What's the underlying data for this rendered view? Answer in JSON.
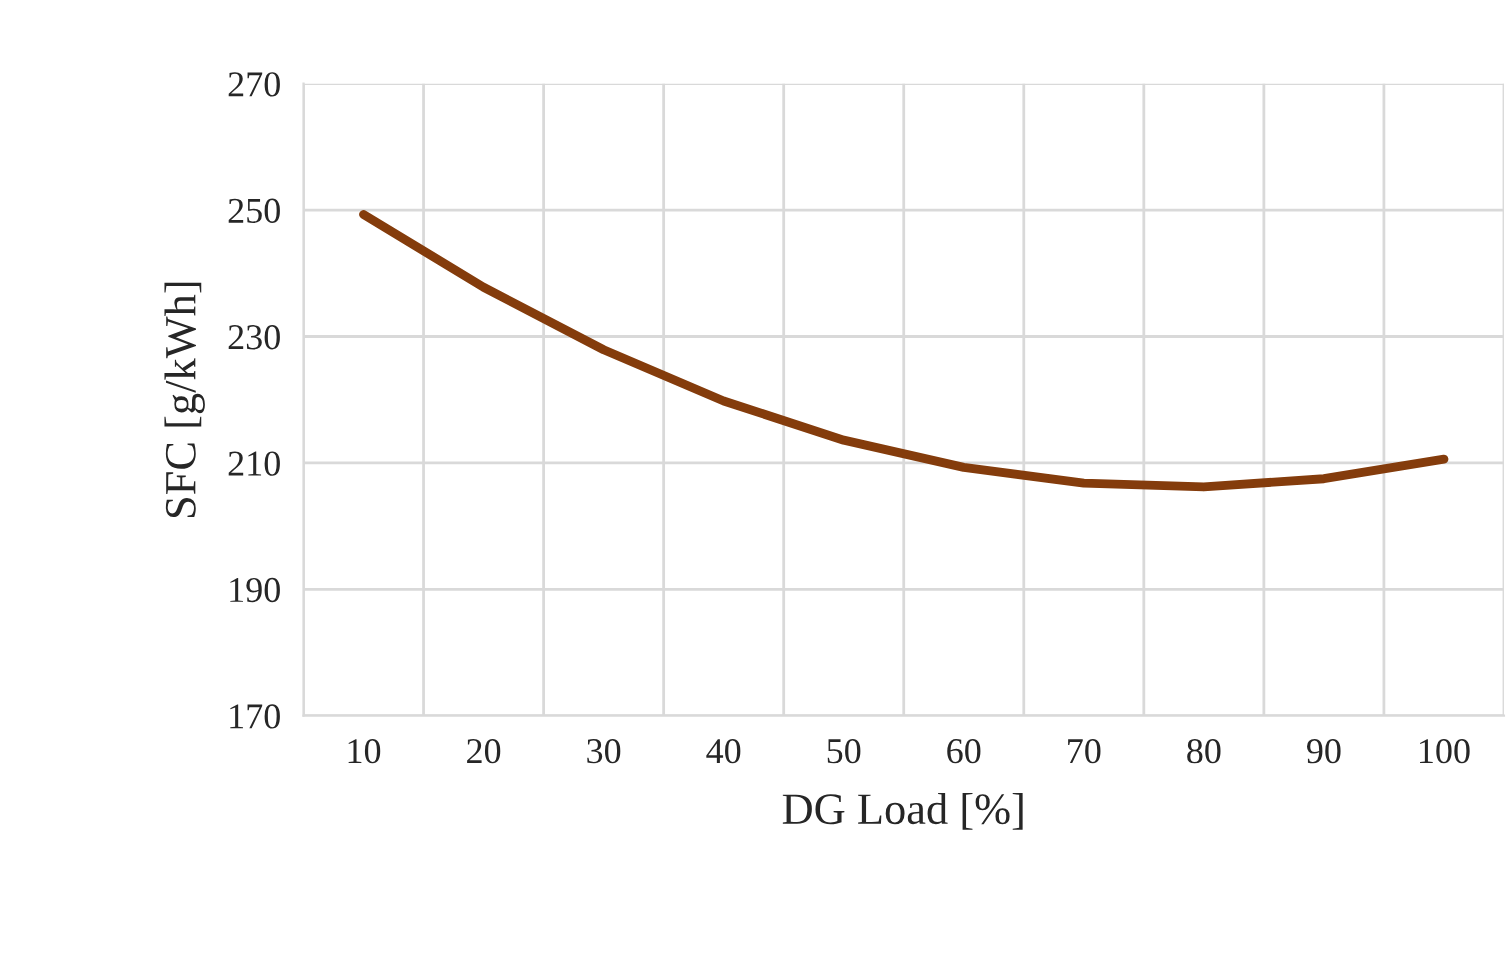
{
  "chart_data": {
    "type": "line",
    "xlabel": "DG Load [%]",
    "ylabel": "SFC [g/kWh]",
    "categories": [
      "10",
      "20",
      "30",
      "40",
      "50",
      "60",
      "70",
      "80",
      "90",
      "100"
    ],
    "series": [
      {
        "color": "#843c0c",
        "values": [
          249.3,
          237.8,
          227.9,
          219.8,
          213.6,
          209.3,
          206.8,
          206.2,
          207.5,
          210.6
        ]
      }
    ],
    "ylim": [
      170,
      270
    ],
    "yticks": [
      170,
      190,
      210,
      230,
      250,
      270
    ],
    "grid": true,
    "marker": "none",
    "line_style": "solid"
  }
}
